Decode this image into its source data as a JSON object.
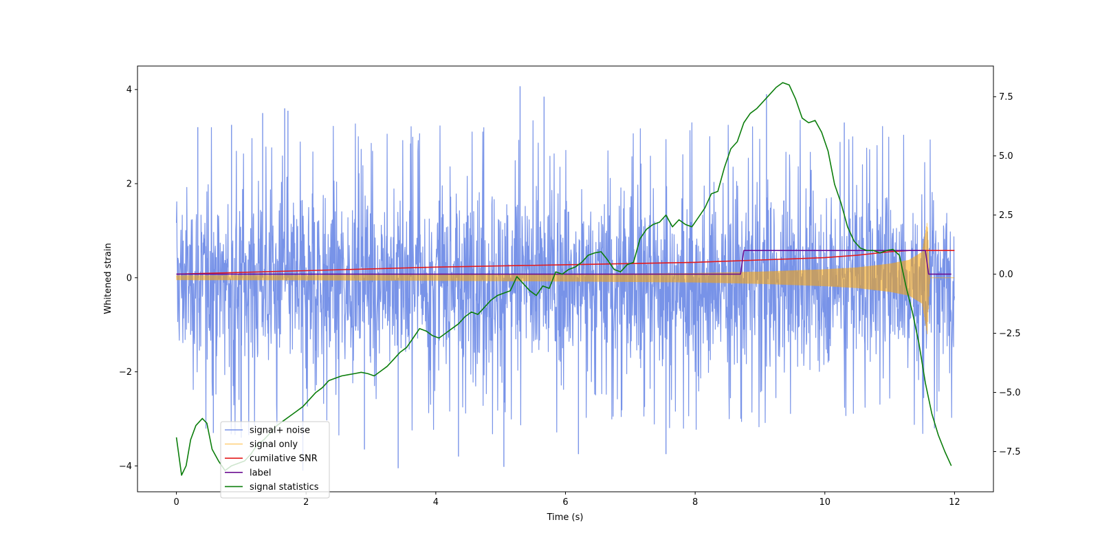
{
  "chart_data": {
    "type": "line",
    "xlabel": "Time (s)",
    "ylabel": "Whitened strain",
    "xlim": [
      -0.6,
      12.6
    ],
    "ylim": [
      -4.55,
      4.5
    ],
    "y2lim": [
      -9.2,
      8.8
    ],
    "xticks": [
      0,
      2,
      4,
      6,
      8,
      10,
      12
    ],
    "yticks": [
      -4,
      -2,
      0,
      2,
      4
    ],
    "y2ticks": [
      -7.5,
      -5.0,
      -2.5,
      0.0,
      2.5,
      5.0,
      7.5
    ],
    "legend_location": "lower left",
    "series": [
      {
        "name": "signal+ noise",
        "color": "#7893e8",
        "axis": "left",
        "kind": "noise_band",
        "x_range": [
          0,
          12
        ],
        "band_envelope": {
          "x": [
            0,
            2,
            4,
            6,
            8,
            10,
            12
          ],
          "low": [
            -2.4,
            -2.4,
            -2.4,
            -2.4,
            -2.4,
            -2.4,
            -2.4
          ],
          "high": [
            2.3,
            2.3,
            2.3,
            2.3,
            2.3,
            2.3,
            2.3
          ]
        },
        "peaks": [
          {
            "x": 0.33,
            "y": 3.2
          },
          {
            "x": 0.85,
            "y": 3.25
          },
          {
            "x": 1.33,
            "y": 3.5
          },
          {
            "x": 1.67,
            "y": 3.6
          },
          {
            "x": 1.72,
            "y": 3.55
          },
          {
            "x": 5.3,
            "y": 4.07
          },
          {
            "x": 5.67,
            "y": 3.85
          },
          {
            "x": 9.1,
            "y": 3.9
          },
          {
            "x": 10.3,
            "y": 3.3
          },
          {
            "x": 1.0,
            "y": -3.4
          },
          {
            "x": 3.42,
            "y": -4.05
          },
          {
            "x": 5.05,
            "y": -4.02
          },
          {
            "x": 4.35,
            "y": -3.8
          },
          {
            "x": 6.2,
            "y": -3.75
          },
          {
            "x": 7.55,
            "y": -3.75
          },
          {
            "x": 2.9,
            "y": -3.65
          },
          {
            "x": 0.57,
            "y": -3.3
          },
          {
            "x": 1.95,
            "y": -4.1
          }
        ]
      },
      {
        "name": "signal only",
        "color": "orange",
        "axis": "left",
        "kind": "chirp",
        "envelope": {
          "x": [
            0,
            2,
            4,
            6,
            8,
            9,
            10,
            10.5,
            11,
            11.3,
            11.5,
            11.58,
            11.62
          ],
          "amp": [
            0.05,
            0.055,
            0.065,
            0.08,
            0.1,
            0.13,
            0.18,
            0.22,
            0.3,
            0.38,
            0.55,
            1.2,
            0.0
          ]
        }
      },
      {
        "name": "cumilative SNR",
        "color": "#e41a1c",
        "axis": "right",
        "x": [
          0,
          2,
          4,
          6,
          8,
          9,
          10,
          10.5,
          11,
          11.3,
          11.6,
          12
        ],
        "y": [
          0.0,
          0.15,
          0.3,
          0.4,
          0.5,
          0.6,
          0.7,
          0.8,
          0.95,
          1.0,
          1.0,
          1.0
        ]
      },
      {
        "name": "label",
        "color": "#6a0d91",
        "axis": "right",
        "x": [
          0,
          8.7,
          8.75,
          11.55,
          11.6,
          11.95
        ],
        "y": [
          0.0,
          0.0,
          1.0,
          1.0,
          0.0,
          0.0
        ]
      },
      {
        "name": "signal statistics",
        "color": "#0a7d0a",
        "axis": "right",
        "x": [
          0,
          0.08,
          0.15,
          0.22,
          0.3,
          0.4,
          0.47,
          0.55,
          0.65,
          0.75,
          0.85,
          0.95,
          1.05,
          1.15,
          1.25,
          1.35,
          1.45,
          1.55,
          1.65,
          1.75,
          1.85,
          1.95,
          2.05,
          2.15,
          2.25,
          2.35,
          2.45,
          2.55,
          2.65,
          2.75,
          2.85,
          2.95,
          3.05,
          3.15,
          3.25,
          3.35,
          3.45,
          3.55,
          3.65,
          3.75,
          3.85,
          3.95,
          4.05,
          4.15,
          4.25,
          4.35,
          4.45,
          4.55,
          4.65,
          4.75,
          4.85,
          4.95,
          5.05,
          5.15,
          5.25,
          5.35,
          5.45,
          5.55,
          5.65,
          5.75,
          5.85,
          5.95,
          6.05,
          6.15,
          6.25,
          6.35,
          6.45,
          6.55,
          6.65,
          6.75,
          6.85,
          6.95,
          7.05,
          7.15,
          7.25,
          7.35,
          7.45,
          7.55,
          7.65,
          7.75,
          7.85,
          7.95,
          8.05,
          8.15,
          8.25,
          8.35,
          8.45,
          8.55,
          8.65,
          8.75,
          8.85,
          8.95,
          9.05,
          9.15,
          9.25,
          9.35,
          9.45,
          9.55,
          9.65,
          9.75,
          9.85,
          9.95,
          10.05,
          10.15,
          10.25,
          10.35,
          10.45,
          10.55,
          10.65,
          10.75,
          10.85,
          10.95,
          11.05,
          11.15,
          11.25,
          11.35,
          11.45,
          11.55,
          11.65,
          11.75,
          11.85,
          11.95
        ],
        "y": [
          -6.9,
          -8.5,
          -8.1,
          -7.0,
          -6.4,
          -6.1,
          -6.3,
          -7.4,
          -7.9,
          -8.3,
          -8.1,
          -8.0,
          -7.9,
          -7.6,
          -7.2,
          -7.0,
          -6.7,
          -6.4,
          -6.2,
          -6.0,
          -5.8,
          -5.6,
          -5.3,
          -5.0,
          -4.8,
          -4.5,
          -4.4,
          -4.3,
          -4.25,
          -4.2,
          -4.15,
          -4.2,
          -4.3,
          -4.1,
          -3.9,
          -3.6,
          -3.3,
          -3.1,
          -2.7,
          -2.3,
          -2.4,
          -2.6,
          -2.7,
          -2.5,
          -2.3,
          -2.1,
          -1.8,
          -1.6,
          -1.7,
          -1.4,
          -1.1,
          -0.9,
          -0.8,
          -0.7,
          -0.1,
          -0.4,
          -0.7,
          -0.9,
          -0.5,
          -0.6,
          0.1,
          0.0,
          0.2,
          0.3,
          0.5,
          0.8,
          0.9,
          0.95,
          0.6,
          0.2,
          0.1,
          0.4,
          0.5,
          1.5,
          1.9,
          2.1,
          2.2,
          2.5,
          2.0,
          2.3,
          2.1,
          2.0,
          2.4,
          2.8,
          3.4,
          3.5,
          4.5,
          5.3,
          5.6,
          6.4,
          6.8,
          7.0,
          7.3,
          7.6,
          7.9,
          8.1,
          8.0,
          7.4,
          6.6,
          6.4,
          6.5,
          6.0,
          5.2,
          3.8,
          3.0,
          2.0,
          1.4,
          1.1,
          1.0,
          1.0,
          0.9,
          1.0,
          1.05,
          0.8,
          -0.5,
          -1.6,
          -2.9,
          -4.6,
          -5.9,
          -6.8,
          -7.5,
          -8.1
        ]
      }
    ]
  }
}
